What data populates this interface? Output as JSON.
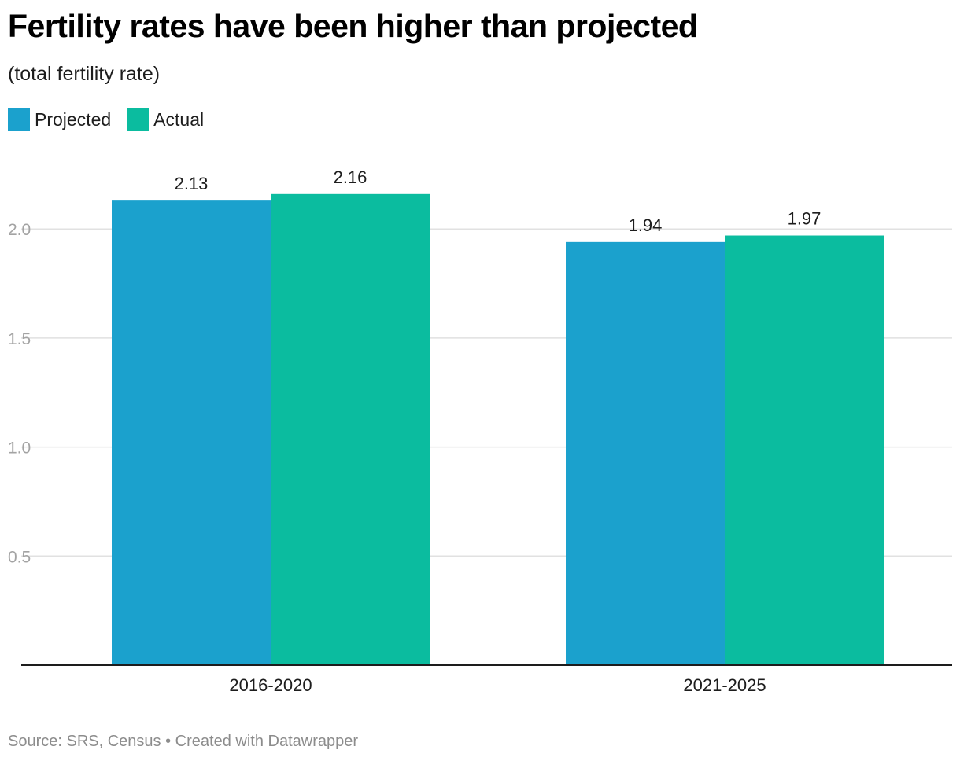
{
  "title": "Fertility rates have been higher than projected",
  "subtitle": "(total fertility rate)",
  "legend": [
    {
      "label": "Projected",
      "color": "#1ba1cd"
    },
    {
      "label": "Actual",
      "color": "#0bbc9f"
    }
  ],
  "footer": {
    "source": "Source: SRS, Census",
    "separator": "•",
    "credit": "Created with Datawrapper"
  },
  "chart_data": {
    "type": "bar",
    "title": "Fertility rates have been higher than projected",
    "subtitle": "(total fertility rate)",
    "categories": [
      "2016-2020",
      "2021-2025"
    ],
    "series": [
      {
        "name": "Projected",
        "color": "#1ba1cd",
        "values": [
          2.13,
          1.94
        ],
        "labels": [
          "2.13",
          "1.94"
        ]
      },
      {
        "name": "Actual",
        "color": "#0bbc9f",
        "values": [
          2.16,
          1.97
        ],
        "labels": [
          "2.16",
          "1.97"
        ]
      }
    ],
    "xlabel": "",
    "ylabel": "",
    "ylim": [
      0,
      2.0
    ],
    "yticks": [
      0.5,
      1.0,
      1.5,
      2.0
    ],
    "ytick_labels": [
      "0.5",
      "1.0",
      "1.5",
      "2.0"
    ],
    "grid": true,
    "legend_position": "top-left"
  }
}
